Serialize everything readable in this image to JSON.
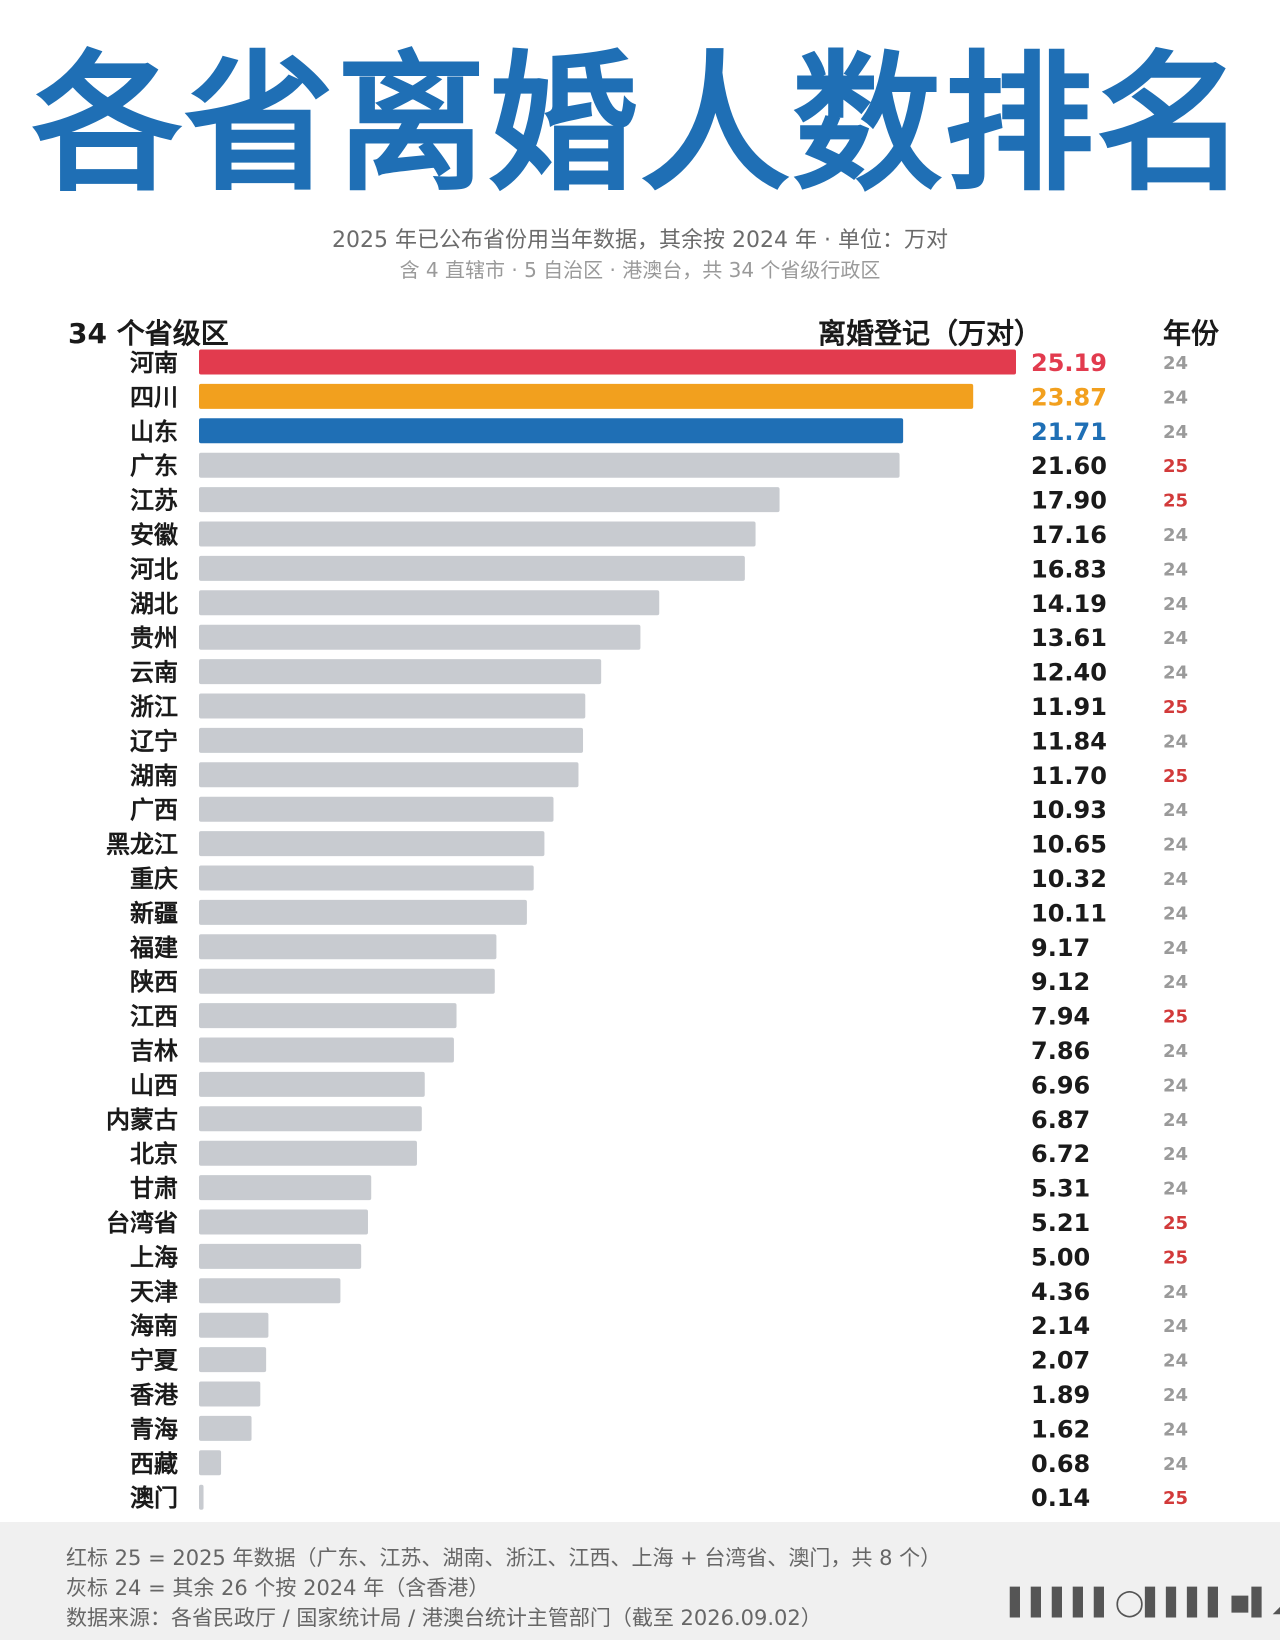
{
  "header": {
    "title": "各省离婚人数排名",
    "subtitle_1": "2025 年已公布省份用当年数据，其余按 2024 年 · 单位：万对",
    "subtitle_2": "含 4 直辖市 · 5 自治区 · 港澳台，共 34 个省级行政区"
  },
  "columns": {
    "region": "34 个省级区",
    "value": "离婚登记（万对）",
    "year": "年份"
  },
  "colors": {
    "title": "#1f6fb5",
    "rank1": "#e23b4e",
    "rank2": "#f2a01e",
    "rank3": "#1f6fb5",
    "bar": "#c8cbd0",
    "year_2025": "#d23a3a",
    "year_2024": "#9a9a9a"
  },
  "chart_data": {
    "type": "bar",
    "orientation": "horizontal",
    "title": "各省离婚人数排名",
    "xlabel": "离婚登记（万对）",
    "ylabel": "34 个省级区",
    "xlim": [
      0,
      25.19
    ],
    "grid": false,
    "categories": [
      "河南",
      "四川",
      "山东",
      "广东",
      "江苏",
      "安徽",
      "河北",
      "湖北",
      "贵州",
      "云南",
      "浙江",
      "辽宁",
      "湖南",
      "广西",
      "黑龙江",
      "重庆",
      "新疆",
      "福建",
      "陕西",
      "江西",
      "吉林",
      "山西",
      "内蒙古",
      "北京",
      "甘肃",
      "台湾省",
      "上海",
      "天津",
      "海南",
      "宁夏",
      "香港",
      "青海",
      "西藏",
      "澳门"
    ],
    "values": [
      25.19,
      23.87,
      21.71,
      21.6,
      17.9,
      17.16,
      16.83,
      14.19,
      13.61,
      12.4,
      11.91,
      11.84,
      11.7,
      10.93,
      10.65,
      10.32,
      10.11,
      9.17,
      9.12,
      7.94,
      7.86,
      6.96,
      6.87,
      6.72,
      5.31,
      5.21,
      5.0,
      4.36,
      2.14,
      2.07,
      1.89,
      1.62,
      0.68,
      0.14
    ],
    "value_labels": [
      "25.19",
      "23.87",
      "21.71",
      "21.60",
      "17.90",
      "17.16",
      "16.83",
      "14.19",
      "13.61",
      "12.40",
      "11.91",
      "11.84",
      "11.70",
      "10.93",
      "10.65",
      "10.32",
      "10.11",
      "9.17",
      "9.12",
      "7.94",
      "7.86",
      "6.96",
      "6.87",
      "6.72",
      "5.31",
      "5.21",
      "5.00",
      "4.36",
      "2.14",
      "2.07",
      "1.89",
      "1.62",
      "0.68",
      "0.14"
    ],
    "years": [
      "24",
      "24",
      "24",
      "25",
      "25",
      "24",
      "24",
      "24",
      "24",
      "24",
      "25",
      "24",
      "25",
      "24",
      "24",
      "24",
      "24",
      "24",
      "24",
      "25",
      "24",
      "24",
      "24",
      "24",
      "24",
      "25",
      "25",
      "24",
      "24",
      "24",
      "24",
      "24",
      "24",
      "25"
    ]
  },
  "footer": {
    "note_1": "红标 25 = 2025 年数据（广东、江苏、湖南、浙江、江西、上海 + 台湾省、澳门，共 8 个）",
    "note_2": "灰标 24 = 其余 26 个按 2024 年（含香港）",
    "source": "数据来源：各省民政厅 / 国家统计局 / 港澳台统计主管部门（截至 2026.09.02）",
    "watermark": "▌▌▌▌▌◯▌▌▌▌◼▌◢"
  }
}
